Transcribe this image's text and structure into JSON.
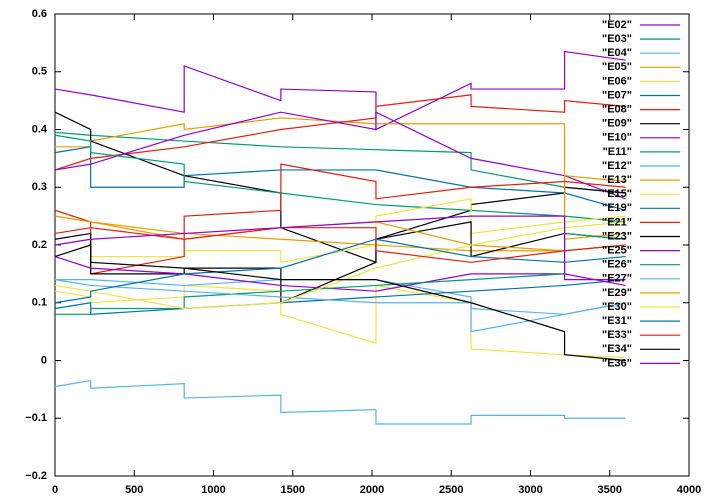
{
  "chart_data": {
    "type": "line",
    "x": [
      0,
      225,
      225,
      815,
      815,
      1425,
      1425,
      2025,
      2025,
      2625,
      2625,
      3215,
      3215,
      3600
    ],
    "xlim": [
      0,
      4000
    ],
    "xticks": [
      0,
      500,
      1000,
      1500,
      2000,
      2500,
      3000,
      3500,
      4000
    ],
    "ylim": [
      -0.2,
      0.6
    ],
    "yticks": [
      {
        "value": -0.2,
        "label": "−0.2"
      },
      {
        "value": -0.1,
        "label": "−0.1"
      },
      0,
      0.1,
      0.2,
      0.3,
      0.4,
      0.5,
      0.6
    ],
    "grid": false,
    "legend": "top-right",
    "series": [
      {
        "name": "\"E02\"",
        "color": "#9400d3",
        "values": [
          0.47,
          0.46,
          0.46,
          0.43,
          0.51,
          0.45,
          0.47,
          0.465,
          0.4,
          0.48,
          0.47,
          0.47,
          0.535,
          0.52
        ]
      },
      {
        "name": "\"E03\"",
        "color": "#009e73",
        "values": [
          0.395,
          0.39,
          0.39,
          0.38,
          0.38,
          0.37,
          0.37,
          0.365,
          0.365,
          0.36,
          0.33,
          0.3,
          0.3,
          0.29
        ]
      },
      {
        "name": "\"E04\"",
        "color": "#56b4e9",
        "values": [
          -0.045,
          -0.035,
          -0.048,
          -0.04,
          -0.065,
          -0.06,
          -0.09,
          -0.085,
          -0.11,
          -0.11,
          -0.095,
          -0.095,
          -0.1,
          -0.1
        ]
      },
      {
        "name": "\"E05\"",
        "color": "#e69f00",
        "values": [
          0.37,
          0.37,
          0.38,
          0.41,
          0.4,
          0.42,
          0.42,
          0.41,
          0.41,
          0.41,
          0.41,
          0.41,
          0.21,
          0.22
        ]
      },
      {
        "name": "\"E06\"",
        "color": "#f0e442",
        "values": [
          0.12,
          0.11,
          0.1,
          0.11,
          0.13,
          0.12,
          0.08,
          0.03,
          0.13,
          0.1,
          0.02,
          0.01,
          0.01,
          0.005
        ]
      },
      {
        "name": "\"E07\"",
        "color": "#0072b2",
        "values": [
          0.36,
          0.37,
          0.3,
          0.3,
          0.32,
          0.33,
          0.33,
          0.33,
          0.33,
          0.3,
          0.3,
          0.29,
          0.29,
          0.26
        ]
      },
      {
        "name": "\"E08\"",
        "color": "#e51e10",
        "values": [
          0.33,
          0.35,
          0.35,
          0.37,
          0.37,
          0.4,
          0.4,
          0.42,
          0.44,
          0.46,
          0.44,
          0.43,
          0.45,
          0.44
        ]
      },
      {
        "name": "\"E09\"",
        "color": "#000000",
        "values": [
          0.43,
          0.4,
          0.38,
          0.32,
          0.32,
          0.29,
          0.23,
          0.17,
          0.21,
          0.26,
          0.27,
          0.29,
          0.3,
          0.29
        ]
      },
      {
        "name": "\"E10\"",
        "color": "#9400d3",
        "values": [
          0.33,
          0.34,
          0.34,
          0.39,
          0.39,
          0.43,
          0.43,
          0.4,
          0.43,
          0.35,
          0.35,
          0.32,
          0.32,
          0.28
        ]
      },
      {
        "name": "\"E11\"",
        "color": "#009e73",
        "values": [
          0.39,
          0.38,
          0.36,
          0.34,
          0.31,
          0.29,
          0.29,
          0.27,
          0.27,
          0.26,
          0.26,
          0.25,
          0.25,
          0.24
        ]
      },
      {
        "name": "\"E12\"",
        "color": "#56b4e9",
        "values": [
          0.14,
          0.14,
          0.14,
          0.13,
          0.13,
          0.14,
          0.14,
          0.14,
          0.14,
          0.11,
          0.05,
          0.08,
          0.08,
          0.1
        ]
      },
      {
        "name": "\"E13\"",
        "color": "#e69f00",
        "values": [
          0.26,
          0.24,
          0.24,
          0.22,
          0.22,
          0.21,
          0.21,
          0.2,
          0.2,
          0.19,
          0.19,
          0.19,
          0.32,
          0.31
        ]
      },
      {
        "name": "\"E15\"",
        "color": "#f0e442",
        "values": [
          0.2,
          0.21,
          0.18,
          0.18,
          0.19,
          0.19,
          0.17,
          0.2,
          0.25,
          0.28,
          0.22,
          0.24,
          0.24,
          0.25
        ]
      },
      {
        "name": "\"E19\"",
        "color": "#0072b2",
        "values": [
          0.09,
          0.1,
          0.08,
          0.09,
          0.09,
          0.1,
          0.1,
          0.11,
          0.11,
          0.12,
          0.12,
          0.13,
          0.13,
          0.14
        ]
      },
      {
        "name": "\"E21\"",
        "color": "#e51e10",
        "values": [
          0.26,
          0.24,
          0.15,
          0.18,
          0.25,
          0.26,
          0.34,
          0.31,
          0.28,
          0.3,
          0.3,
          0.31,
          0.31,
          0.3
        ]
      },
      {
        "name": "\"E23\"",
        "color": "#000000",
        "values": [
          0.18,
          0.2,
          0.15,
          0.15,
          0.16,
          0.16,
          0.1,
          0.17,
          0.21,
          0.24,
          0.18,
          0.22,
          0.22,
          0.21
        ]
      },
      {
        "name": "\"E25\"",
        "color": "#9400d3",
        "values": [
          0.18,
          0.16,
          0.16,
          0.15,
          0.15,
          0.13,
          0.13,
          0.12,
          0.12,
          0.15,
          0.15,
          0.15,
          0.15,
          0.13
        ]
      },
      {
        "name": "\"E26\"",
        "color": "#009e73",
        "values": [
          0.08,
          0.08,
          0.09,
          0.09,
          0.11,
          0.12,
          0.12,
          0.13,
          0.13,
          0.14,
          0.14,
          0.15,
          0.22,
          0.21
        ]
      },
      {
        "name": "\"E27\"",
        "color": "#56b4e9",
        "values": [
          0.14,
          0.13,
          0.13,
          0.12,
          0.12,
          0.11,
          0.11,
          0.1,
          0.1,
          0.1,
          0.09,
          0.08,
          0.08,
          0.1
        ]
      },
      {
        "name": "\"E29\"",
        "color": "#e69f00",
        "values": [
          0.25,
          0.24,
          0.24,
          0.21,
          0.21,
          0.23,
          0.23,
          0.24,
          0.24,
          0.2,
          0.2,
          0.19,
          0.19,
          0.2
        ]
      },
      {
        "name": "\"E30\"",
        "color": "#f0e442",
        "values": [
          0.13,
          0.12,
          0.12,
          0.09,
          0.09,
          0.1,
          0.1,
          0.16,
          0.16,
          0.2,
          0.2,
          0.23,
          0.23,
          0.24
        ]
      },
      {
        "name": "\"E31\"",
        "color": "#0072b2",
        "values": [
          0.1,
          0.11,
          0.12,
          0.15,
          0.15,
          0.16,
          0.16,
          0.21,
          0.21,
          0.18,
          0.18,
          0.17,
          0.17,
          0.18
        ]
      },
      {
        "name": "\"E33\"",
        "color": "#e51e10",
        "values": [
          0.22,
          0.23,
          0.23,
          0.21,
          0.21,
          0.23,
          0.23,
          0.23,
          0.19,
          0.17,
          0.17,
          0.19,
          0.19,
          0.2
        ]
      },
      {
        "name": "\"E34\"",
        "color": "#000000",
        "values": [
          0.21,
          0.22,
          0.17,
          0.16,
          0.16,
          0.14,
          0.14,
          0.14,
          0.14,
          0.1,
          0.1,
          0.05,
          0.01,
          0.0
        ]
      },
      {
        "name": "\"E36\"",
        "color": "#9400d3",
        "values": [
          0.2,
          0.21,
          0.21,
          0.22,
          0.22,
          0.23,
          0.23,
          0.24,
          0.24,
          0.25,
          0.25,
          0.25,
          0.14,
          0.14
        ]
      }
    ]
  }
}
